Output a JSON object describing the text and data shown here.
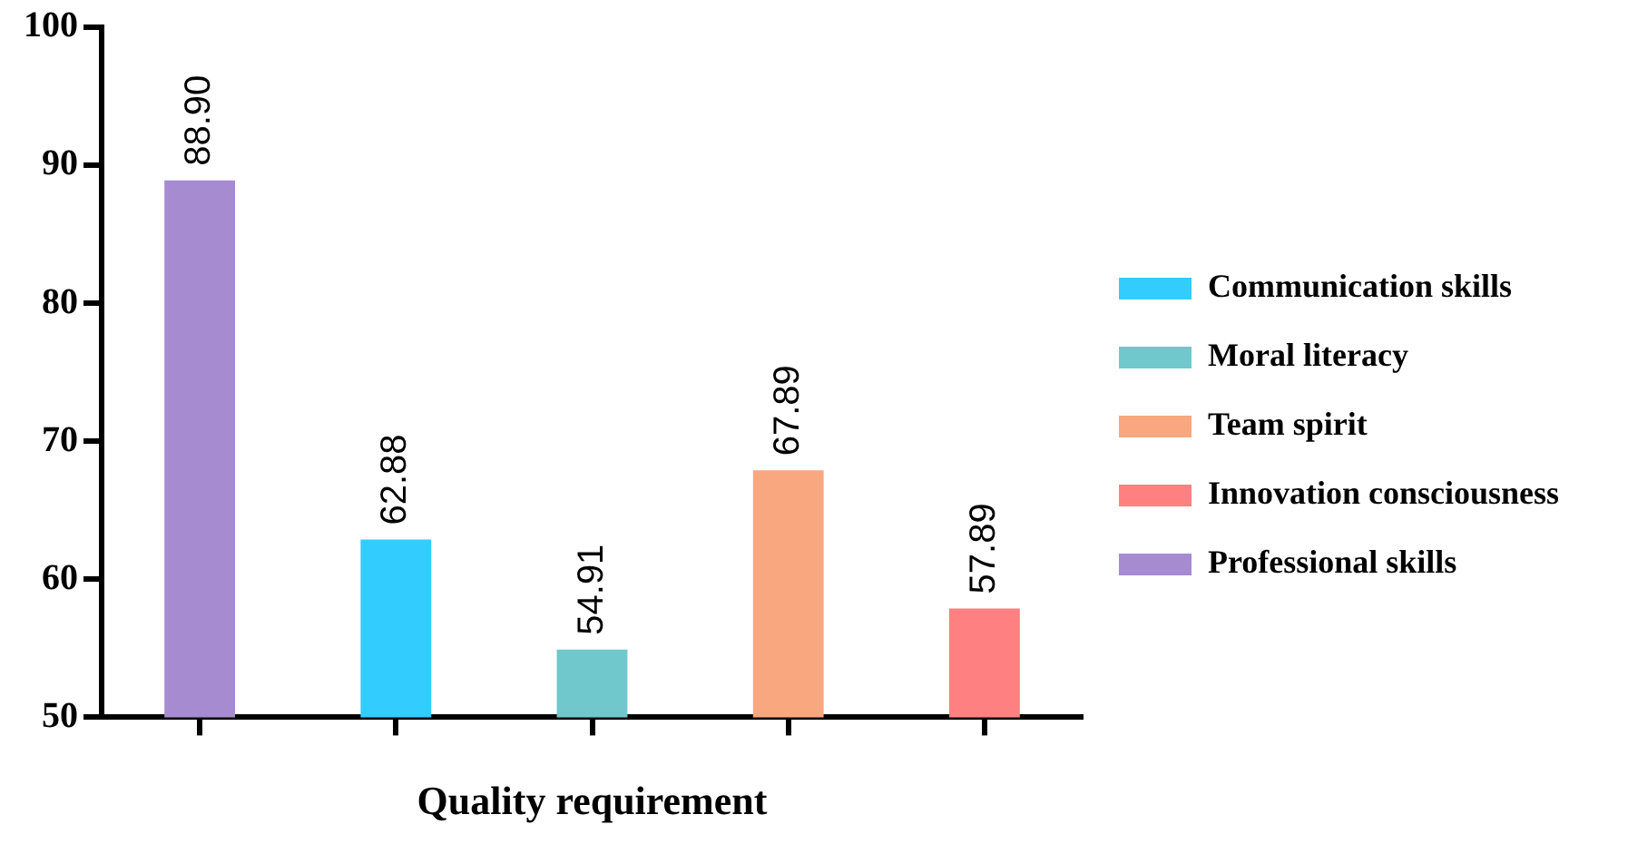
{
  "chart_data": {
    "type": "bar",
    "xlabel": "Quality requirement",
    "categories": [
      null,
      null,
      null,
      null,
      null
    ],
    "series": [
      {
        "name": "Communication skills",
        "color": "#33ccff",
        "values": [
          null,
          62.88,
          null,
          null,
          null
        ],
        "value_labels": [
          null,
          "62.88",
          null,
          null,
          null
        ]
      },
      {
        "name": "Moral literacy",
        "color": "#70c8cc",
        "values": [
          null,
          null,
          54.91,
          null,
          null
        ],
        "value_labels": [
          null,
          null,
          "54.91",
          null,
          null
        ]
      },
      {
        "name": "Team spirit",
        "color": "#f9a77e",
        "values": [
          null,
          null,
          null,
          67.89,
          null
        ],
        "value_labels": [
          null,
          null,
          null,
          "67.89",
          null
        ]
      },
      {
        "name": "Innovation consciousness",
        "color": "#ff8080",
        "values": [
          null,
          null,
          null,
          null,
          57.89
        ],
        "value_labels": [
          null,
          null,
          null,
          null,
          "57.89"
        ]
      },
      {
        "name": "Professional skills",
        "color": "#a68bd0",
        "values": [
          88.9,
          null,
          null,
          null,
          null
        ],
        "value_labels": [
          "88.90",
          null,
          null,
          null,
          null
        ]
      }
    ],
    "ylim": [
      50,
      100
    ],
    "yticks": [
      50,
      60,
      70,
      80,
      90,
      100
    ],
    "grid": false,
    "legend": "right"
  }
}
